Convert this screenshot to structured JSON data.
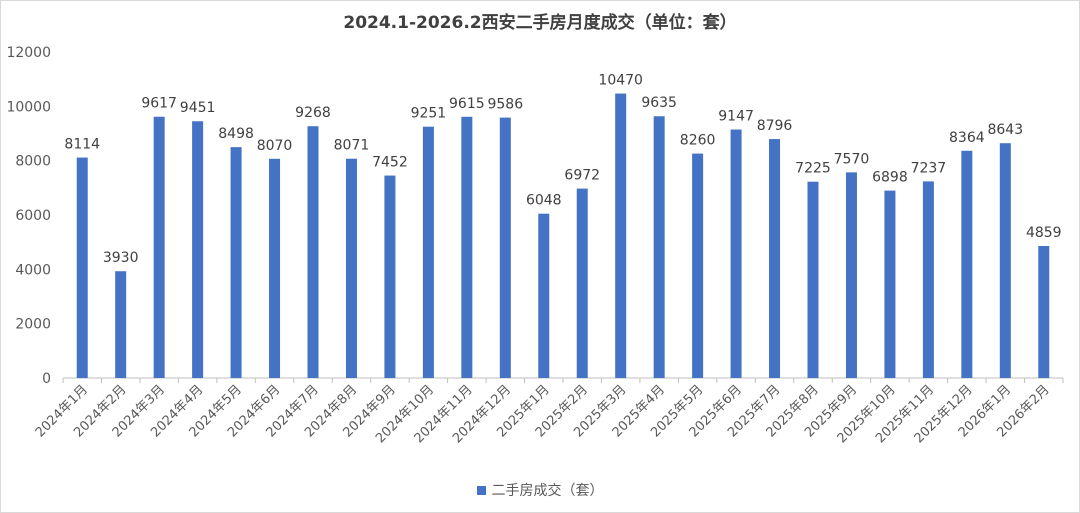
{
  "chart_data": {
    "type": "bar",
    "title": "2024.1-2026.2西安二手房月度成交（单位：套）",
    "xlabel": "",
    "ylabel": "",
    "ylim": [
      0,
      12000
    ],
    "yticks": [
      0,
      2000,
      4000,
      6000,
      8000,
      10000,
      12000
    ],
    "grid": false,
    "legend_position": "bottom",
    "bar_color": "#4472C4",
    "categories": [
      "2024年1月",
      "2024年2月",
      "2024年3月",
      "2024年4月",
      "2024年5月",
      "2024年6月",
      "2024年7月",
      "2024年8月",
      "2024年9月",
      "2024年10月",
      "2024年11月",
      "2024年12月",
      "2025年1月",
      "2025年2月",
      "2025年3月",
      "2025年4月",
      "2025年5月",
      "2025年6月",
      "2025年7月",
      "2025年8月",
      "2025年9月",
      "2025年10月",
      "2025年11月",
      "2025年12月",
      "2026年1月",
      "2026年2月"
    ],
    "series": [
      {
        "name": "二手房成交（套）",
        "values": [
          8114,
          3930,
          9617,
          9451,
          8498,
          8070,
          9268,
          8071,
          7452,
          9251,
          9615,
          9586,
          6048,
          6972,
          10470,
          9635,
          8260,
          9147,
          8796,
          7225,
          7570,
          6898,
          7237,
          8364,
          8643,
          4859
        ]
      }
    ]
  }
}
